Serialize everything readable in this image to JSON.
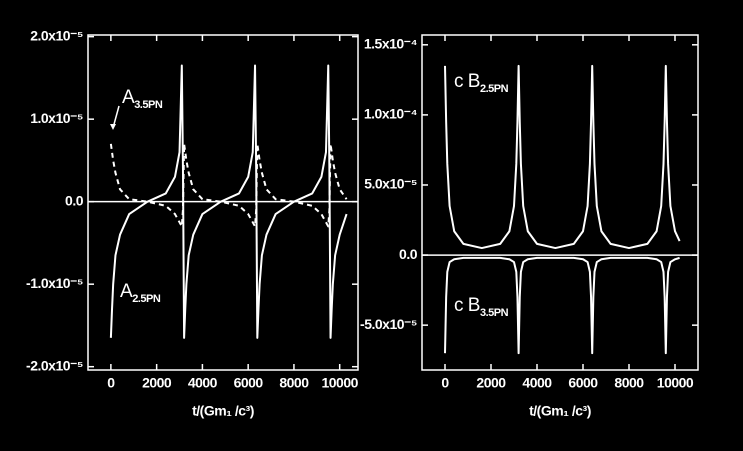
{
  "chart_data": [
    {
      "type": "line",
      "xlabel": "t/(Gm₁ /c³)",
      "xlim": [
        -1000,
        10800
      ],
      "ylim": [
        -2.04e-05,
        2.02e-05
      ],
      "xticks": [
        0,
        2000,
        4000,
        6000,
        8000,
        10000
      ],
      "yticks": [
        {
          "value": -2e-05,
          "label": "-2.0x10⁻⁵"
        },
        {
          "value": -1e-05,
          "label": "-1.0x10⁻⁵"
        },
        {
          "value": 0,
          "label": "0.0"
        },
        {
          "value": 1e-05,
          "label": "1.0x10⁻⁵"
        },
        {
          "value": 2e-05,
          "label": "2.0x10⁻⁵"
        }
      ],
      "x": [
        0,
        50,
        100,
        200,
        400,
        800,
        1600,
        2400,
        2800,
        3000,
        3100,
        3150,
        3200,
        3250,
        3300,
        3400,
        3600,
        4000,
        4800,
        5600,
        6000,
        6200,
        6300,
        6350,
        6400,
        6450,
        6500,
        6600,
        6800,
        7200,
        8000,
        8800,
        9200,
        9400,
        9500,
        9550,
        9600,
        9650,
        9700,
        9800,
        10000,
        10300
      ],
      "series": [
        {
          "color": "#ffffff",
          "dash": false,
          "values": [
            -1.65e-05,
            -1.3e-05,
            -1e-05,
            -6.5e-06,
            -4e-06,
            -1.5e-06,
            0,
            1e-06,
            3e-06,
            6e-06,
            1.65e-05,
            4e-06,
            -1.65e-05,
            -1.3e-05,
            -1e-05,
            -6.5e-06,
            -4e-06,
            -1.5e-06,
            0,
            1e-06,
            3e-06,
            6e-06,
            1.65e-05,
            4e-06,
            -1.65e-05,
            -1.3e-05,
            -1e-05,
            -6.5e-06,
            -4e-06,
            -1.5e-06,
            0,
            1e-06,
            3e-06,
            6e-06,
            1.65e-05,
            4e-06,
            -1.65e-05,
            -1.3e-05,
            -1e-05,
            -6.5e-06,
            -4e-06,
            -1.5e-06
          ]
        },
        {
          "color": "#ffffff",
          "dash": true,
          "values": [
            7e-06,
            6e-06,
            5e-06,
            3.5e-06,
            1.5e-06,
            3e-07,
            0,
            -5e-07,
            -1.5e-06,
            -2.5e-06,
            -3e-06,
            -1e-06,
            7e-06,
            6e-06,
            5e-06,
            3.5e-06,
            1.5e-06,
            3e-07,
            0,
            -5e-07,
            -1.5e-06,
            -2.5e-06,
            -3e-06,
            -1e-06,
            7e-06,
            6e-06,
            5e-06,
            3.5e-06,
            1.5e-06,
            3e-07,
            0,
            -5e-07,
            -1.5e-06,
            -2.5e-06,
            -3e-06,
            -1e-06,
            7e-06,
            6e-06,
            5e-06,
            3.5e-06,
            1.5e-06,
            3e-07
          ]
        }
      ],
      "annotations": [
        {
          "text": "A",
          "subscript": "3.5PN"
        },
        {
          "text": "A",
          "subscript": "2.5PN"
        }
      ]
    },
    {
      "type": "line",
      "xlabel": "t/(Gm₁ /c³)",
      "xlim": [
        -1000,
        11000
      ],
      "ylim": [
        -8.2e-05,
        0.000157
      ],
      "xticks": [
        0,
        2000,
        4000,
        6000,
        8000,
        10000
      ],
      "yticks": [
        {
          "value": -5e-05,
          "label": "-5.0x10⁻⁵"
        },
        {
          "value": 0,
          "label": "0.0"
        },
        {
          "value": 5e-05,
          "label": "5.0x10⁻⁵"
        },
        {
          "value": 0.0001,
          "label": "1.0x10⁻⁴"
        },
        {
          "value": 0.00015,
          "label": "1.5x10⁻⁴"
        }
      ],
      "x": [
        0,
        50,
        100,
        200,
        400,
        800,
        1600,
        2400,
        2800,
        3000,
        3100,
        3150,
        3200,
        3250,
        3300,
        3400,
        3600,
        4000,
        4800,
        5600,
        6000,
        6200,
        6300,
        6350,
        6400,
        6450,
        6500,
        6600,
        6800,
        7200,
        8000,
        8800,
        9200,
        9400,
        9500,
        9550,
        9600,
        9650,
        9700,
        9800,
        10000,
        10200
      ],
      "series": [
        {
          "color": "#ffffff",
          "dash": false,
          "values": [
            0.000135,
            9.5e-05,
            6.5e-05,
            3.5e-05,
            1.7e-05,
            8e-06,
            5e-06,
            8e-06,
            1.7e-05,
            3.5e-05,
            6.5e-05,
            9.5e-05,
            0.000135,
            9.5e-05,
            6.5e-05,
            3.5e-05,
            1.7e-05,
            8e-06,
            5e-06,
            8e-06,
            1.7e-05,
            3.5e-05,
            6.5e-05,
            9.5e-05,
            0.000135,
            9.5e-05,
            6.5e-05,
            3.5e-05,
            1.7e-05,
            8e-06,
            5e-06,
            8e-06,
            1.7e-05,
            3.5e-05,
            6.5e-05,
            9.5e-05,
            0.000135,
            9.5e-05,
            6.5e-05,
            3.5e-05,
            1.7e-05,
            1e-05
          ]
        },
        {
          "color": "#ffffff",
          "dash": false,
          "values": [
            -7e-05,
            -3e-05,
            -1.2e-05,
            -5e-06,
            -3e-06,
            -2e-06,
            -2e-06,
            -2e-06,
            -3e-06,
            -5e-06,
            -1.2e-05,
            -3e-05,
            -7e-05,
            -3e-05,
            -1.2e-05,
            -5e-06,
            -3e-06,
            -2e-06,
            -2e-06,
            -2e-06,
            -3e-06,
            -5e-06,
            -1.2e-05,
            -3e-05,
            -7e-05,
            -3e-05,
            -1.2e-05,
            -5e-06,
            -3e-06,
            -2e-06,
            -2e-06,
            -2e-06,
            -3e-06,
            -5e-06,
            -1.2e-05,
            -3e-05,
            -7e-05,
            -3e-05,
            -1.2e-05,
            -5e-06,
            -3e-06,
            -2e-06
          ]
        }
      ],
      "annotations": [
        {
          "text": "c B",
          "subscript": "2.5PN"
        },
        {
          "text": "c B",
          "subscript": "3.5PN"
        }
      ]
    }
  ]
}
